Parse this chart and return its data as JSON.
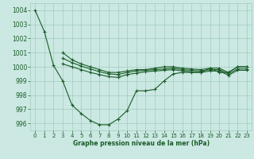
{
  "background_color": "#cbe8e2",
  "grid_color": "#a0ccbf",
  "line_color": "#1a5c28",
  "xlabel": "Graphe pression niveau de la mer (hPa)",
  "ylim": [
    995.5,
    1004.5
  ],
  "xlim": [
    -0.5,
    23.5
  ],
  "yticks": [
    996,
    997,
    998,
    999,
    1000,
    1001,
    1002,
    1003,
    1004
  ],
  "xticks": [
    0,
    1,
    2,
    3,
    4,
    5,
    6,
    7,
    8,
    9,
    10,
    11,
    12,
    13,
    14,
    15,
    16,
    17,
    18,
    19,
    20,
    21,
    22,
    23
  ],
  "series1_x": [
    0,
    1,
    2,
    3,
    4,
    5,
    6,
    7,
    8,
    9,
    10,
    11,
    12,
    13,
    14,
    15,
    16,
    17,
    18,
    19,
    20,
    21,
    22,
    23
  ],
  "series1_y": [
    1004.0,
    1002.5,
    1000.1,
    999.0,
    997.3,
    996.7,
    996.2,
    995.9,
    995.9,
    996.3,
    996.9,
    998.3,
    998.3,
    998.4,
    999.0,
    999.5,
    999.6,
    999.6,
    999.6,
    999.9,
    999.6,
    999.6,
    1000.0,
    1000.0
  ],
  "series2_x": [
    3,
    4,
    5,
    6,
    7,
    8,
    9,
    10,
    11,
    12,
    13,
    14,
    15,
    16,
    17,
    18,
    19,
    20,
    21,
    22,
    23
  ],
  "series2_y": [
    1001.0,
    1000.5,
    1000.2,
    1000.0,
    999.8,
    999.6,
    999.6,
    999.7,
    999.8,
    999.8,
    999.9,
    1000.0,
    1000.0,
    999.9,
    999.85,
    999.8,
    999.9,
    999.9,
    999.6,
    1000.0,
    1000.0
  ],
  "series3_x": [
    3,
    4,
    5,
    6,
    7,
    8,
    9,
    10,
    11,
    12,
    13,
    14,
    15,
    16,
    17,
    18,
    19,
    20,
    21,
    22,
    23
  ],
  "series3_y": [
    1000.6,
    1000.3,
    1000.05,
    999.85,
    999.65,
    999.5,
    999.45,
    999.6,
    999.7,
    999.75,
    999.8,
    999.85,
    999.9,
    999.8,
    999.75,
    999.7,
    999.8,
    999.8,
    999.5,
    999.85,
    999.85
  ],
  "series4_x": [
    3,
    4,
    5,
    6,
    7,
    8,
    9,
    10,
    11,
    12,
    13,
    14,
    15,
    16,
    17,
    18,
    19,
    20,
    21,
    22,
    23
  ],
  "series4_y": [
    1000.2,
    1000.0,
    999.8,
    999.6,
    999.45,
    999.3,
    999.25,
    999.45,
    999.55,
    999.65,
    999.7,
    999.75,
    999.8,
    999.7,
    999.65,
    999.6,
    999.7,
    999.7,
    999.4,
    999.75,
    999.75
  ]
}
